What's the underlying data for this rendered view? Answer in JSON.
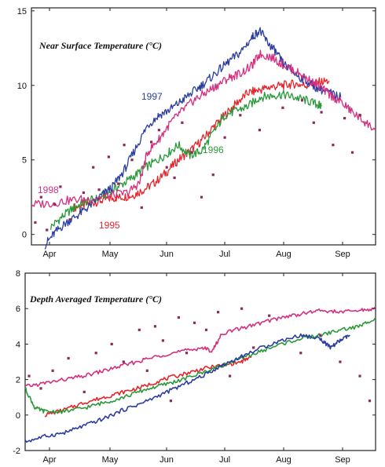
{
  "chart_data": [
    {
      "type": "line",
      "title": "Near Surface Temperature (°C)",
      "x_ticks": [
        "Apr",
        "May",
        "Jun",
        "Jul",
        "Aug",
        "Sep"
      ],
      "y_ticks": [
        "0",
        "5",
        "10",
        "15"
      ],
      "xlim": [
        0,
        178
      ],
      "ylim": [
        -0.7,
        15.2
      ],
      "series": [
        {
          "name": "1995",
          "color": "#e8242b",
          "x": [
            22,
            28,
            34,
            40,
            46,
            52,
            58,
            64,
            70,
            76,
            82,
            88,
            94,
            100,
            106,
            112,
            118,
            124,
            130,
            136,
            142,
            148,
            154
          ],
          "y": [
            1.8,
            2.0,
            2.2,
            2.4,
            2.5,
            2.6,
            3.0,
            3.5,
            4.2,
            5.0,
            5.6,
            6.3,
            7.2,
            8.0,
            8.8,
            9.5,
            9.7,
            9.9,
            10.0,
            10.1,
            10.0,
            10.2,
            10.3
          ]
        },
        {
          "name": "1996",
          "color": "#2a9a3a",
          "x": [
            10,
            16,
            22,
            28,
            34,
            40,
            46,
            52,
            58,
            64,
            70,
            76,
            82,
            88,
            94,
            100,
            106,
            112,
            118,
            124,
            130,
            136,
            142,
            148,
            150
          ],
          "y": [
            0.5,
            1.2,
            1.8,
            2.2,
            2.4,
            2.8,
            3.3,
            3.8,
            4.4,
            4.9,
            5.4,
            6.0,
            5.3,
            5.6,
            6.8,
            8.0,
            8.3,
            8.6,
            9.2,
            9.3,
            9.4,
            9.2,
            9.0,
            8.7,
            8.6
          ]
        },
        {
          "name": "1997",
          "color": "#2b3da0",
          "x": [
            7,
            12,
            18,
            24,
            30,
            36,
            42,
            48,
            54,
            60,
            66,
            72,
            78,
            84,
            90,
            96,
            102,
            108,
            114,
            118,
            122,
            126,
            130,
            136,
            142,
            148,
            154,
            160
          ],
          "y": [
            -0.7,
            0.1,
            0.8,
            1.3,
            1.9,
            2.6,
            3.2,
            4.3,
            5.8,
            7.3,
            8.0,
            8.4,
            9.0,
            9.6,
            10.2,
            10.9,
            11.6,
            12.2,
            13.2,
            13.7,
            12.9,
            12.3,
            11.5,
            10.8,
            10.3,
            9.8,
            9.5,
            9.2
          ]
        },
        {
          "name": "1998",
          "color": "#d4307f",
          "x": [
            0,
            10,
            20,
            30,
            40,
            50,
            56,
            60,
            66,
            72,
            78,
            84,
            90,
            96,
            102,
            108,
            114,
            118,
            124,
            130,
            136,
            142,
            148,
            154,
            160,
            166,
            172,
            178
          ],
          "y": [
            2.0,
            2.1,
            2.3,
            2.4,
            2.6,
            2.8,
            3.5,
            5.5,
            6.4,
            7.5,
            8.3,
            9.0,
            9.5,
            10.0,
            10.5,
            10.8,
            11.3,
            12.1,
            11.9,
            11.4,
            11.0,
            10.5,
            10.0,
            9.4,
            8.9,
            8.2,
            7.6,
            7.0
          ]
        }
      ],
      "scatter_points": {
        "color": "#8c2a5a",
        "x": [
          2,
          5,
          8,
          12,
          15,
          20,
          27,
          32,
          35,
          40,
          45,
          48,
          52,
          57,
          62,
          66,
          70,
          74,
          78,
          83,
          88,
          94,
          100,
          108,
          118,
          130,
          140,
          146,
          150,
          156,
          162,
          166,
          170
        ],
        "y": [
          0.8,
          2.5,
          0.3,
          2.0,
          3.2,
          1.0,
          2.8,
          4.5,
          3.0,
          5.2,
          3.4,
          6.0,
          5.0,
          1.8,
          6.2,
          7.0,
          4.5,
          3.8,
          7.5,
          5.5,
          2.5,
          4.0,
          6.5,
          8.0,
          7.0,
          8.5,
          9.0,
          7.5,
          8.2,
          6.0,
          7.8,
          5.5,
          8.0
        ]
      }
    },
    {
      "type": "line",
      "title": "Depth Averaged Temperature (°C)",
      "x_ticks": [
        "Apr",
        "May",
        "Jun",
        "Jul",
        "Aug",
        "Sep"
      ],
      "y_ticks": [
        "-2",
        "0",
        "2",
        "4",
        "6",
        "8"
      ],
      "xlim": [
        0,
        178
      ],
      "ylim": [
        -2,
        8
      ],
      "series": [
        {
          "name": "1995",
          "color": "#e8242b",
          "x": [
            10,
            20,
            30,
            40,
            50,
            60,
            70,
            80,
            90,
            100,
            110,
            115
          ],
          "y": [
            0.0,
            0.3,
            0.7,
            1.0,
            1.3,
            1.6,
            2.0,
            2.3,
            2.6,
            2.8,
            3.0,
            3.3
          ]
        },
        {
          "name": "1996",
          "color": "#2a9a3a",
          "x": [
            0,
            5,
            10,
            20,
            30,
            40,
            50,
            60,
            70,
            80,
            90,
            100,
            110,
            120,
            130,
            140,
            150,
            160,
            170,
            178
          ],
          "y": [
            1.5,
            0.4,
            0.2,
            0.2,
            0.4,
            0.7,
            1.0,
            1.4,
            1.7,
            2.0,
            2.4,
            2.8,
            3.2,
            3.6,
            4.0,
            4.3,
            4.5,
            4.8,
            5.0,
            5.5
          ]
        },
        {
          "name": "1997",
          "color": "#2b3da0",
          "x": [
            0,
            10,
            20,
            30,
            40,
            50,
            60,
            70,
            80,
            90,
            100,
            110,
            120,
            130,
            140,
            150,
            155,
            160,
            165
          ],
          "y": [
            -1.5,
            -1.2,
            -1.0,
            -0.6,
            -0.2,
            0.3,
            0.7,
            1.2,
            1.7,
            2.2,
            2.8,
            3.3,
            3.8,
            4.2,
            4.5,
            4.3,
            3.8,
            4.2,
            4.5
          ]
        },
        {
          "name": "1998",
          "color": "#d4307f",
          "x": [
            0,
            10,
            20,
            30,
            40,
            50,
            60,
            70,
            80,
            90,
            95,
            100,
            110,
            120,
            130,
            140,
            150,
            160,
            170,
            178
          ],
          "y": [
            1.6,
            1.8,
            2.0,
            2.2,
            2.5,
            2.8,
            3.1,
            3.4,
            3.6,
            3.8,
            3.6,
            4.6,
            4.9,
            5.2,
            5.5,
            5.7,
            5.9,
            5.8,
            5.9,
            6.0
          ]
        }
      ],
      "scatter_points": {
        "color": "#8c2a5a",
        "x": [
          2,
          8,
          14,
          22,
          30,
          36,
          44,
          50,
          58,
          62,
          66,
          70,
          74,
          78,
          82,
          86,
          92,
          98,
          104,
          110,
          116,
          124,
          140,
          150,
          160,
          170,
          175
        ],
        "y": [
          2.2,
          1.5,
          2.5,
          3.2,
          1.3,
          3.5,
          4.0,
          3.0,
          4.8,
          2.5,
          5.0,
          4.2,
          0.8,
          5.5,
          3.5,
          5.2,
          4.8,
          5.8,
          2.2,
          6.0,
          3.8,
          5.6,
          3.5,
          4.5,
          3.0,
          2.2,
          0.8
        ]
      }
    }
  ]
}
